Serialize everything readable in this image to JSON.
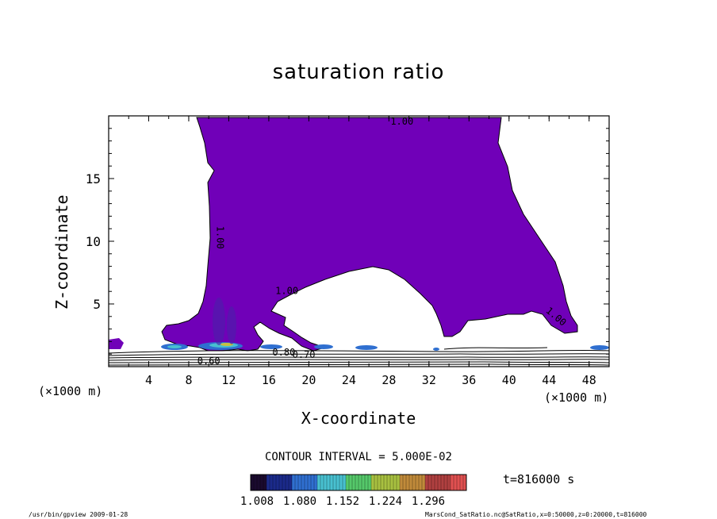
{
  "chart_data": {
    "type": "contour",
    "title": "saturation ratio",
    "xlabel": "X-coordinate",
    "ylabel": "Z-coordinate",
    "x_units": "(×1000 m)",
    "y_units": "(×1000 m)",
    "xlim": [
      0,
      50
    ],
    "ylim": [
      0,
      20
    ],
    "x_ticks": [
      "4",
      "8",
      "12",
      "16",
      "20",
      "24",
      "28",
      "32",
      "36",
      "40",
      "44",
      "48"
    ],
    "y_ticks": [
      "5",
      "10",
      "15"
    ],
    "contour_labels": [
      "1.00",
      "1.00",
      "1.00",
      "1.00",
      "0.80",
      "0.70",
      "0.60"
    ],
    "contour_interval": "CONTOUR INTERVAL = 5.000E-02",
    "colorbar": {
      "labels": [
        "1.008",
        "1.080",
        "1.152",
        "1.224",
        "1.296"
      ],
      "colors": [
        "#1a0a2e",
        "#1b2a8a",
        "#2f6fd0",
        "#48c0d0",
        "#55c86a",
        "#a8c040",
        "#c08a3a",
        "#b04040",
        "#e05050"
      ]
    },
    "fill_color": "#7000b8",
    "time_label": "t=816000 s",
    "footer_left": "/usr/bin/gpview  2009-01-28",
    "footer_right": "MarsCond_SatRatio.nc@SatRatio,x=0:50000,z=0:20000,t=816000"
  }
}
